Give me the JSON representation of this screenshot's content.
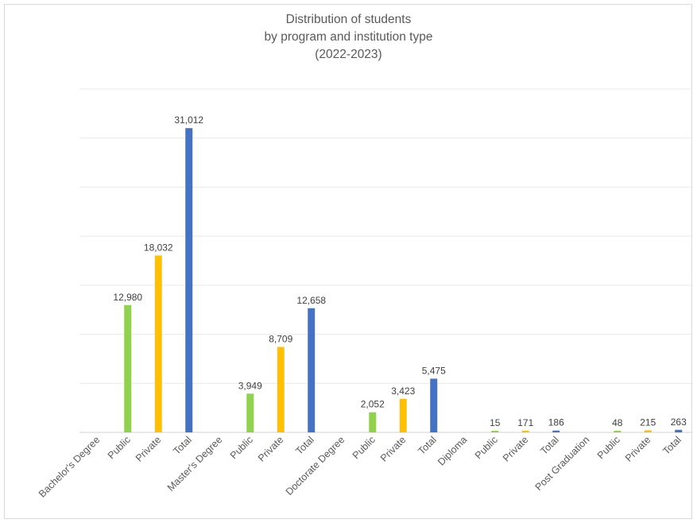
{
  "chart_data": {
    "type": "bar",
    "title_lines": [
      "Distribution of students",
      "by program and institution type",
      "(2022-2023)"
    ],
    "xlabel": "",
    "ylabel": "",
    "ylim": [
      0,
      35000
    ],
    "grid": true,
    "legend": "none",
    "colors": {
      "Public": "#92d050",
      "Private": "#ffc000",
      "Total": "#4472c4"
    },
    "groups": [
      {
        "name": "Bachelor's Degree",
        "bars": [
          {
            "label": "Public",
            "value": 12980,
            "display": "12,980"
          },
          {
            "label": "Private",
            "value": 18032,
            "display": "18,032"
          },
          {
            "label": "Total",
            "value": 31012,
            "display": "31,012"
          }
        ]
      },
      {
        "name": "Master's Degree",
        "bars": [
          {
            "label": "Public",
            "value": 3949,
            "display": "3,949"
          },
          {
            "label": "Private",
            "value": 8709,
            "display": "8,709"
          },
          {
            "label": "Total",
            "value": 12658,
            "display": "12,658"
          }
        ]
      },
      {
        "name": "Doctorate Degree",
        "bars": [
          {
            "label": "Public",
            "value": 2052,
            "display": "2,052"
          },
          {
            "label": "Private",
            "value": 3423,
            "display": "3,423"
          },
          {
            "label": "Total",
            "value": 5475,
            "display": "5,475"
          }
        ]
      },
      {
        "name": "Diploma",
        "bars": [
          {
            "label": "Public",
            "value": 15,
            "display": "15"
          },
          {
            "label": "Private",
            "value": 171,
            "display": "171"
          },
          {
            "label": "Total",
            "value": 186,
            "display": "186"
          }
        ]
      },
      {
        "name": "Post Graduation",
        "bars": [
          {
            "label": "Public",
            "value": 48,
            "display": "48"
          },
          {
            "label": "Private",
            "value": 215,
            "display": "215"
          },
          {
            "label": "Total",
            "value": 263,
            "display": "263"
          }
        ]
      }
    ]
  }
}
